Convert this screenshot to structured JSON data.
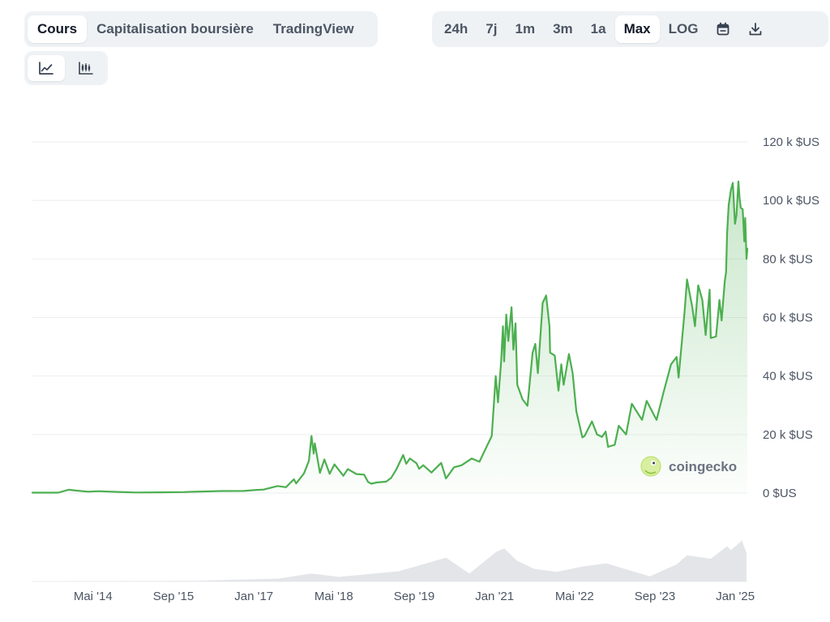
{
  "tabs": {
    "left": [
      {
        "label": "Cours",
        "active": true
      },
      {
        "label": "Capitalisation boursière",
        "active": false
      },
      {
        "label": "TradingView",
        "active": false
      }
    ],
    "right": [
      {
        "label": "24h",
        "active": false
      },
      {
        "label": "7j",
        "active": false
      },
      {
        "label": "1m",
        "active": false
      },
      {
        "label": "3m",
        "active": false
      },
      {
        "label": "1a",
        "active": false
      },
      {
        "label": "Max",
        "active": true
      },
      {
        "label": "LOG",
        "active": false
      }
    ]
  },
  "icons": {
    "calendar": "calendar-icon",
    "download": "download-icon",
    "line_chart": "line-chart-icon",
    "candlestick": "candlestick-icon"
  },
  "watermark": {
    "text": "coingecko"
  },
  "colors": {
    "line": "#4caf50",
    "volume": "#dcdfe4",
    "grid": "#eceef1"
  },
  "chart_data": {
    "type": "line",
    "x_unit": "date",
    "y_ticks": [
      {
        "value": 0,
        "label": "0 $US"
      },
      {
        "value": 20000,
        "label": "20 k $US"
      },
      {
        "value": 40000,
        "label": "40 k $US"
      },
      {
        "value": 60000,
        "label": "60 k $US"
      },
      {
        "value": 80000,
        "label": "80 k $US"
      },
      {
        "value": 100000,
        "label": "100 k $US"
      },
      {
        "value": 120000,
        "label": "120 k $US"
      }
    ],
    "ylim": [
      0,
      120000
    ],
    "x_ticks": [
      {
        "date": "2014-05-01",
        "label": "Mai '14"
      },
      {
        "date": "2015-09-01",
        "label": "Sep '15"
      },
      {
        "date": "2017-01-01",
        "label": "Jan '17"
      },
      {
        "date": "2018-05-01",
        "label": "Mai '18"
      },
      {
        "date": "2019-09-01",
        "label": "Sep '19"
      },
      {
        "date": "2021-01-01",
        "label": "Jan '21"
      },
      {
        "date": "2022-05-01",
        "label": "Mai '22"
      },
      {
        "date": "2023-09-01",
        "label": "Sep '23"
      },
      {
        "date": "2025-01-01",
        "label": "Jan '25"
      }
    ],
    "xlim": [
      "2013-04-28",
      "2025-03-15"
    ],
    "series": [
      {
        "points": [
          [
            "2013-04-28",
            135
          ],
          [
            "2013-10-01",
            125
          ],
          [
            "2013-12-04",
            1150
          ],
          [
            "2014-01-15",
            850
          ],
          [
            "2014-04-01",
            480
          ],
          [
            "2014-06-01",
            650
          ],
          [
            "2014-10-01",
            380
          ],
          [
            "2015-01-15",
            200
          ],
          [
            "2015-06-01",
            240
          ],
          [
            "2015-11-01",
            320
          ],
          [
            "2016-01-01",
            430
          ],
          [
            "2016-06-15",
            700
          ],
          [
            "2016-11-01",
            720
          ],
          [
            "2017-01-01",
            1000
          ],
          [
            "2017-03-01",
            1200
          ],
          [
            "2017-05-25",
            2400
          ],
          [
            "2017-07-15",
            2000
          ],
          [
            "2017-09-01",
            4700
          ],
          [
            "2017-09-15",
            3300
          ],
          [
            "2017-11-01",
            6700
          ],
          [
            "2017-12-01",
            11000
          ],
          [
            "2017-12-17",
            19500
          ],
          [
            "2017-12-30",
            13500
          ],
          [
            "2018-01-06",
            17000
          ],
          [
            "2018-02-06",
            6900
          ],
          [
            "2018-03-05",
            11500
          ],
          [
            "2018-04-06",
            6600
          ],
          [
            "2018-05-05",
            9800
          ],
          [
            "2018-06-28",
            5900
          ],
          [
            "2018-07-25",
            8200
          ],
          [
            "2018-09-15",
            6500
          ],
          [
            "2018-11-01",
            6300
          ],
          [
            "2018-11-25",
            3800
          ],
          [
            "2018-12-15",
            3200
          ],
          [
            "2019-01-15",
            3600
          ],
          [
            "2019-03-15",
            3900
          ],
          [
            "2019-04-15",
            5200
          ],
          [
            "2019-05-15",
            8000
          ],
          [
            "2019-06-26",
            13000
          ],
          [
            "2019-07-15",
            10000
          ],
          [
            "2019-08-06",
            11800
          ],
          [
            "2019-09-15",
            10200
          ],
          [
            "2019-10-01",
            8300
          ],
          [
            "2019-10-26",
            9500
          ],
          [
            "2019-12-15",
            7000
          ],
          [
            "2020-02-12",
            10300
          ],
          [
            "2020-03-12",
            5000
          ],
          [
            "2020-04-30",
            8800
          ],
          [
            "2020-06-15",
            9500
          ],
          [
            "2020-08-15",
            11800
          ],
          [
            "2020-10-01",
            10700
          ],
          [
            "2020-11-15",
            16000
          ],
          [
            "2020-12-15",
            19500
          ],
          [
            "2021-01-08",
            40000
          ],
          [
            "2021-01-22",
            31000
          ],
          [
            "2021-02-10",
            45000
          ],
          [
            "2021-02-21",
            57000
          ],
          [
            "2021-02-28",
            45000
          ],
          [
            "2021-03-13",
            61000
          ],
          [
            "2021-03-25",
            52000
          ],
          [
            "2021-04-14",
            63500
          ],
          [
            "2021-04-25",
            49000
          ],
          [
            "2021-05-08",
            58000
          ],
          [
            "2021-05-19",
            37000
          ],
          [
            "2021-06-20",
            32000
          ],
          [
            "2021-07-20",
            29800
          ],
          [
            "2021-08-20",
            48000
          ],
          [
            "2021-09-05",
            51000
          ],
          [
            "2021-09-21",
            41000
          ],
          [
            "2021-10-20",
            65000
          ],
          [
            "2021-11-10",
            67500
          ],
          [
            "2021-11-30",
            57000
          ],
          [
            "2021-12-04",
            48000
          ],
          [
            "2022-01-01",
            47000
          ],
          [
            "2022-01-24",
            35000
          ],
          [
            "2022-02-10",
            44000
          ],
          [
            "2022-02-24",
            37000
          ],
          [
            "2022-03-28",
            47500
          ],
          [
            "2022-04-20",
            41000
          ],
          [
            "2022-05-12",
            28000
          ],
          [
            "2022-06-18",
            19000
          ],
          [
            "2022-07-01",
            19500
          ],
          [
            "2022-08-15",
            24500
          ],
          [
            "2022-09-15",
            20000
          ],
          [
            "2022-10-15",
            19200
          ],
          [
            "2022-11-06",
            21000
          ],
          [
            "2022-11-21",
            15800
          ],
          [
            "2022-12-31",
            16500
          ],
          [
            "2023-01-25",
            23000
          ],
          [
            "2023-03-10",
            20000
          ],
          [
            "2023-04-14",
            30500
          ],
          [
            "2023-06-15",
            25000
          ],
          [
            "2023-07-13",
            31500
          ],
          [
            "2023-09-11",
            25000
          ],
          [
            "2023-10-24",
            34500
          ],
          [
            "2023-12-08",
            44000
          ],
          [
            "2024-01-11",
            46500
          ],
          [
            "2024-01-23",
            39500
          ],
          [
            "2024-02-28",
            62000
          ],
          [
            "2024-03-14",
            73000
          ],
          [
            "2024-04-15",
            63500
          ],
          [
            "2024-05-01",
            57000
          ],
          [
            "2024-05-21",
            71000
          ],
          [
            "2024-06-15",
            66000
          ],
          [
            "2024-07-05",
            54000
          ],
          [
            "2024-07-29",
            69500
          ],
          [
            "2024-08-05",
            53000
          ],
          [
            "2024-09-06",
            53500
          ],
          [
            "2024-09-27",
            66000
          ],
          [
            "2024-10-10",
            59000
          ],
          [
            "2024-10-29",
            72500
          ],
          [
            "2024-11-06",
            75500
          ],
          [
            "2024-11-12",
            88500
          ],
          [
            "2024-11-22",
            98500
          ],
          [
            "2024-12-05",
            103500
          ],
          [
            "2024-12-17",
            106000
          ],
          [
            "2024-12-30",
            92000
          ],
          [
            "2025-01-08",
            95000
          ],
          [
            "2025-01-20",
            106500
          ],
          [
            "2025-01-27",
            101000
          ],
          [
            "2025-02-03",
            97500
          ],
          [
            "2025-02-15",
            97000
          ],
          [
            "2025-02-25",
            86000
          ],
          [
            "2025-03-02",
            94000
          ],
          [
            "2025-03-10",
            80000
          ],
          [
            "2025-03-15",
            83500
          ]
        ]
      }
    ],
    "volume_unit": "share of chart maximum",
    "volume": [
      [
        "2013-04-28",
        0.0
      ],
      [
        "2016-01-01",
        0.01
      ],
      [
        "2017-06-01",
        0.05
      ],
      [
        "2017-12-15",
        0.14
      ],
      [
        "2018-06-01",
        0.08
      ],
      [
        "2019-06-01",
        0.18
      ],
      [
        "2020-03-12",
        0.42
      ],
      [
        "2020-08-01",
        0.14
      ],
      [
        "2021-01-10",
        0.52
      ],
      [
        "2021-03-01",
        0.58
      ],
      [
        "2021-05-19",
        0.36
      ],
      [
        "2021-09-01",
        0.22
      ],
      [
        "2022-01-15",
        0.17
      ],
      [
        "2022-06-15",
        0.26
      ],
      [
        "2022-11-10",
        0.32
      ],
      [
        "2023-03-15",
        0.21
      ],
      [
        "2023-08-01",
        0.09
      ],
      [
        "2024-01-11",
        0.3
      ],
      [
        "2024-03-14",
        0.46
      ],
      [
        "2024-08-05",
        0.4
      ],
      [
        "2024-11-12",
        0.62
      ],
      [
        "2024-12-05",
        0.55
      ],
      [
        "2025-02-10",
        0.72
      ],
      [
        "2025-03-10",
        0.5
      ]
    ]
  }
}
